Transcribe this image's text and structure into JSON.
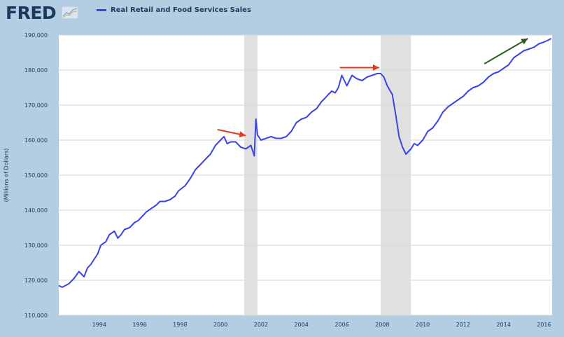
{
  "header": {
    "logo_text": "FRED",
    "logo_icon": "fred-graph-icon",
    "legend_label": "Real Retail and Food Services Sales",
    "legend_color": "#3a44e6"
  },
  "chart_data": {
    "type": "line",
    "title": "",
    "xlabel": "",
    "ylabel": "(Millions of Dollars)",
    "xlim": [
      1992.0,
      2016.4
    ],
    "ylim": [
      110000,
      190000
    ],
    "yticks": [
      110000,
      120000,
      130000,
      140000,
      150000,
      160000,
      170000,
      180000,
      190000
    ],
    "ytick_labels": [
      "110,000",
      "120,000",
      "130,000",
      "140,000",
      "150,000",
      "160,000",
      "170,000",
      "180,000",
      "190,000"
    ],
    "xticks": [
      1994,
      1996,
      1998,
      2000,
      2002,
      2004,
      2006,
      2008,
      2010,
      2012,
      2014,
      2016
    ],
    "xtick_labels": [
      "1994",
      "1996",
      "1998",
      "2000",
      "2002",
      "2004",
      "2006",
      "2008",
      "2010",
      "2012",
      "2014",
      "2016"
    ],
    "grid": true,
    "legend_position": "top",
    "recessions": [
      [
        2001.17,
        2001.83
      ],
      [
        2007.92,
        2009.42
      ]
    ],
    "series": [
      {
        "name": "Real Retail and Food Services Sales",
        "color": "#3a44e6",
        "x": [
          1992.0,
          1992.17,
          1992.5,
          1992.75,
          1993.0,
          1993.25,
          1993.42,
          1993.58,
          1993.75,
          1993.92,
          1994.08,
          1994.33,
          1994.5,
          1994.75,
          1994.92,
          1995.08,
          1995.25,
          1995.5,
          1995.75,
          1995.92,
          1996.17,
          1996.33,
          1996.58,
          1996.83,
          1997.0,
          1997.25,
          1997.5,
          1997.75,
          1997.92,
          1998.25,
          1998.5,
          1998.75,
          1999.0,
          1999.33,
          1999.5,
          1999.75,
          2000.0,
          2000.17,
          2000.33,
          2000.5,
          2000.75,
          2001.0,
          2001.25,
          2001.5,
          2001.67,
          2001.75,
          2001.83,
          2002.0,
          2002.25,
          2002.5,
          2002.75,
          2003.0,
          2003.25,
          2003.5,
          2003.75,
          2004.0,
          2004.25,
          2004.5,
          2004.75,
          2005.0,
          2005.17,
          2005.33,
          2005.5,
          2005.67,
          2005.83,
          2006.0,
          2006.25,
          2006.5,
          2006.75,
          2007.0,
          2007.25,
          2007.5,
          2007.75,
          2007.92,
          2008.08,
          2008.25,
          2008.5,
          2008.67,
          2008.83,
          2009.0,
          2009.17,
          2009.42,
          2009.58,
          2009.75,
          2010.0,
          2010.25,
          2010.5,
          2010.75,
          2011.0,
          2011.25,
          2011.5,
          2011.75,
          2012.0,
          2012.25,
          2012.5,
          2012.75,
          2013.0,
          2013.25,
          2013.5,
          2013.75,
          2014.0,
          2014.25,
          2014.5,
          2014.75,
          2015.0,
          2015.25,
          2015.5,
          2015.75,
          2016.0,
          2016.2,
          2016.35
        ],
        "values": [
          118500,
          118000,
          119000,
          120500,
          122500,
          121000,
          123500,
          124500,
          126000,
          127500,
          130000,
          131000,
          133000,
          134000,
          132000,
          133000,
          134500,
          135000,
          136500,
          137000,
          138500,
          139500,
          140500,
          141500,
          142500,
          142500,
          143000,
          144000,
          145500,
          147000,
          149000,
          151500,
          153000,
          155000,
          156000,
          158500,
          160000,
          161000,
          159000,
          159500,
          159500,
          158000,
          157500,
          158500,
          155500,
          166000,
          161500,
          160000,
          160500,
          161000,
          160500,
          160500,
          161000,
          162500,
          165000,
          166000,
          166500,
          168000,
          169000,
          171000,
          172000,
          173000,
          174000,
          173500,
          175000,
          178500,
          175500,
          178500,
          177500,
          177000,
          178000,
          178500,
          179000,
          179000,
          178000,
          175500,
          173000,
          167000,
          161000,
          158000,
          156000,
          157500,
          159000,
          158500,
          160000,
          162500,
          163500,
          165500,
          168000,
          169500,
          170500,
          171500,
          172500,
          174000,
          175000,
          175500,
          176500,
          178000,
          179000,
          179500,
          180500,
          181500,
          183500,
          184500,
          185500,
          186000,
          186500,
          187500,
          188000,
          188500,
          189000
        ]
      }
    ],
    "annotations": [
      {
        "type": "arrow",
        "color": "#e8381d",
        "x1": 1999.85,
        "y1": 163000,
        "x2": 2001.25,
        "y2": 161300
      },
      {
        "type": "arrow",
        "color": "#e8381d",
        "x1": 2005.9,
        "y1": 180700,
        "x2": 2007.85,
        "y2": 180700
      },
      {
        "type": "arrow",
        "color": "#2a5e1e",
        "x1": 2013.05,
        "y1": 181800,
        "x2": 2015.2,
        "y2": 189000
      }
    ]
  }
}
